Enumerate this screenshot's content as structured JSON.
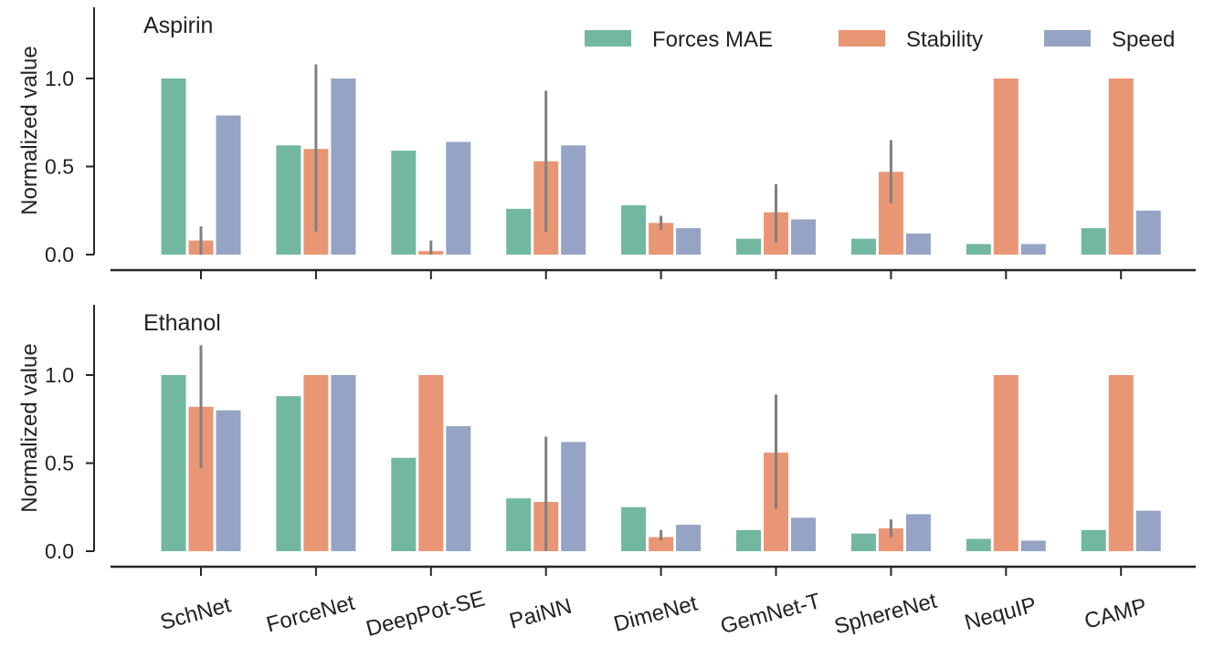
{
  "chart_data": {
    "type": "bar",
    "categories": [
      "SchNet",
      "ForceNet",
      "DeepPot-SE",
      "PaiNN",
      "DimeNet",
      "GemNet-T",
      "SphereNet",
      "NequIP",
      "CAMP"
    ],
    "legend": {
      "placement": "top-right",
      "entries": [
        "Forces MAE",
        "Stability",
        "Speed"
      ]
    },
    "series_colors": {
      "Forces MAE": "#72b8a1",
      "Stability": "#e99675",
      "Speed": "#95a4c4"
    },
    "error_bar_color": "#808080",
    "axis_color": "#262626",
    "panels": [
      {
        "title": "Aspirin",
        "ylabel": "Normalized value",
        "ylim": [
          0,
          1.4
        ],
        "yticks": [
          0.0,
          0.5,
          1.0
        ],
        "ytick_labels": [
          "0.0",
          "0.5",
          "1.0"
        ],
        "grid": false,
        "show_legend": true,
        "series": [
          {
            "name": "Forces MAE",
            "values": [
              1.0,
              0.62,
              0.59,
              0.26,
              0.28,
              0.09,
              0.09,
              0.06,
              0.15
            ]
          },
          {
            "name": "Stability",
            "values": [
              0.08,
              0.6,
              0.02,
              0.53,
              0.18,
              0.24,
              0.47,
              1.0,
              1.0
            ],
            "error": [
              [
                0.0,
                0.16
              ],
              [
                0.13,
                1.08
              ],
              [
                0.0,
                0.08
              ],
              [
                0.13,
                0.93
              ],
              [
                0.14,
                0.22
              ],
              [
                0.07,
                0.4
              ],
              [
                0.29,
                0.65
              ],
              null,
              null
            ]
          },
          {
            "name": "Speed",
            "values": [
              0.79,
              1.0,
              0.64,
              0.62,
              0.15,
              0.2,
              0.12,
              0.06,
              0.25
            ]
          }
        ]
      },
      {
        "title": "Ethanol",
        "ylabel": "Normalized value",
        "ylim": [
          0,
          1.4
        ],
        "yticks": [
          0.0,
          0.5,
          1.0
        ],
        "ytick_labels": [
          "0.0",
          "0.5",
          "1.0"
        ],
        "grid": false,
        "show_legend": false,
        "series": [
          {
            "name": "Forces MAE",
            "values": [
              1.0,
              0.88,
              0.53,
              0.3,
              0.25,
              0.12,
              0.1,
              0.07,
              0.12
            ]
          },
          {
            "name": "Stability",
            "values": [
              0.82,
              1.0,
              1.0,
              0.28,
              0.08,
              0.56,
              0.13,
              1.0,
              1.0
            ],
            "error": [
              [
                0.47,
                1.17
              ],
              null,
              null,
              [
                0.0,
                0.65
              ],
              [
                0.06,
                0.12
              ],
              [
                0.24,
                0.89
              ],
              [
                0.08,
                0.18
              ],
              null,
              null
            ]
          },
          {
            "name": "Speed",
            "values": [
              0.8,
              1.0,
              0.71,
              0.62,
              0.15,
              0.19,
              0.21,
              0.06,
              0.23
            ]
          }
        ]
      }
    ]
  }
}
